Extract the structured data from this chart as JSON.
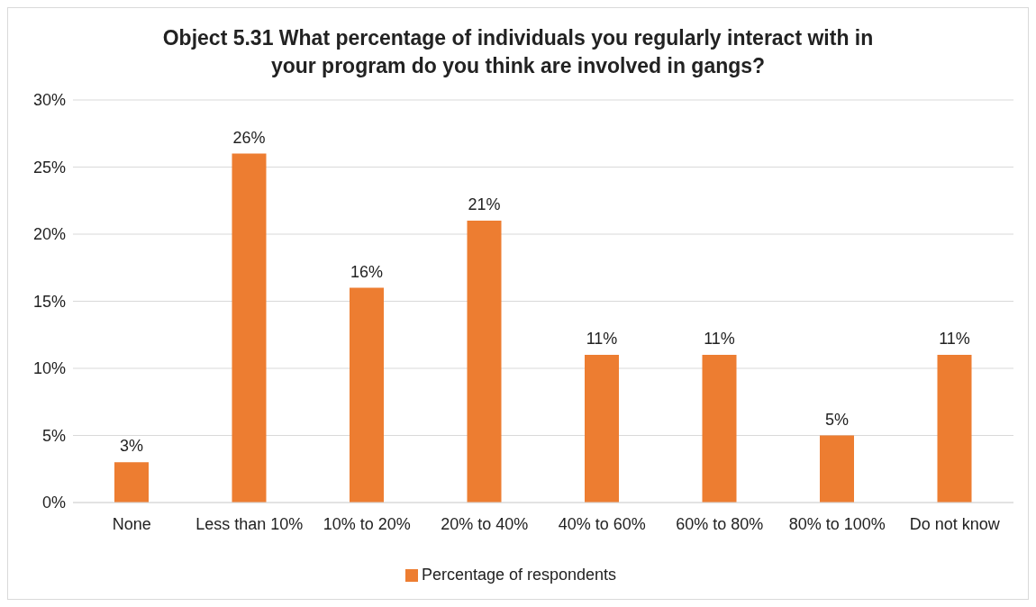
{
  "chart_data": {
    "type": "bar",
    "title": "Object 5.31 What percentage of individuals you regularly interact with in your program do you think are involved in gangs?",
    "categories": [
      "None",
      "Less than 10%",
      "10% to 20%",
      "20% to 40%",
      "40% to 60%",
      "60% to 80%",
      "80% to 100%",
      "Do not know"
    ],
    "series": [
      {
        "name": "Percentage of respondents",
        "color": "#ed7d31",
        "values": [
          3,
          26,
          16,
          21,
          11,
          11,
          5,
          11
        ],
        "value_labels": [
          "3%",
          "26%",
          "16%",
          "21%",
          "11%",
          "11%",
          "5%",
          "11%"
        ]
      }
    ],
    "ylim": [
      0,
      30
    ],
    "yticks": [
      {
        "value": 0,
        "label": "0%"
      },
      {
        "value": 5,
        "label": "5%"
      },
      {
        "value": 10,
        "label": "10%"
      },
      {
        "value": 15,
        "label": "15%"
      },
      {
        "value": 20,
        "label": "20%"
      },
      {
        "value": 25,
        "label": "25%"
      },
      {
        "value": 30,
        "label": "30%"
      }
    ],
    "grid": "y",
    "legend": "bottom"
  }
}
